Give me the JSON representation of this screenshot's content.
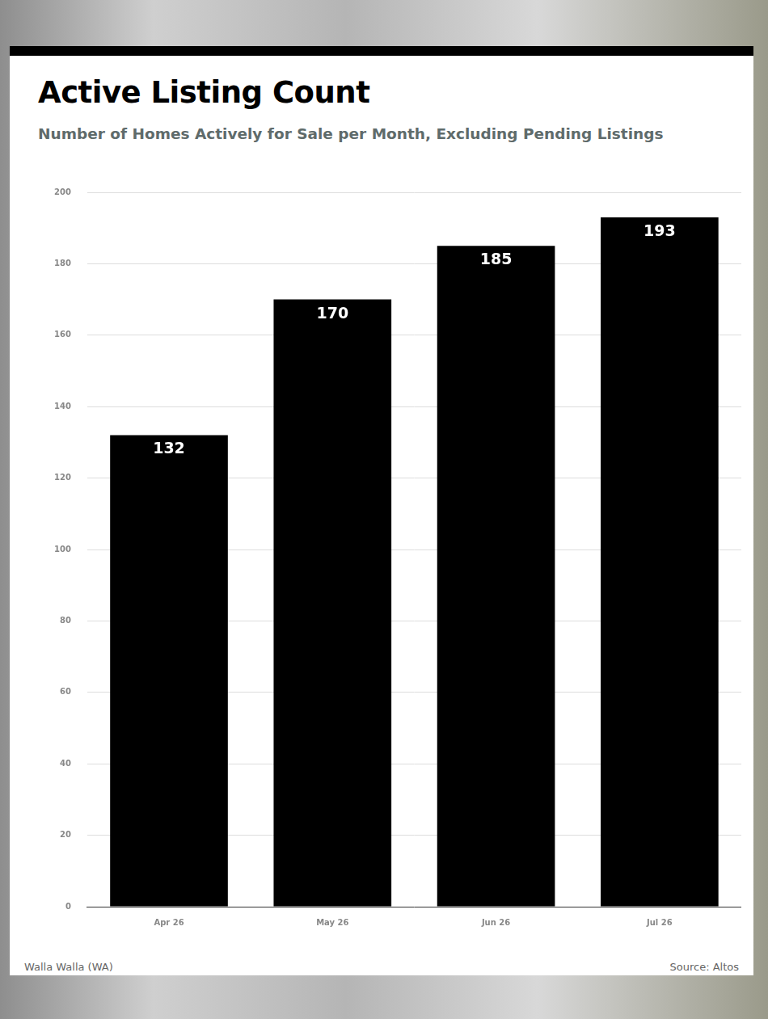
{
  "chart_data": {
    "type": "bar",
    "title": "Active Listing Count",
    "subtitle": "Number of Homes Actively for Sale per Month, Excluding Pending Listings",
    "categories": [
      "Apr 26",
      "May 26",
      "Jun 26",
      "Jul 26"
    ],
    "values": [
      132,
      170,
      185,
      193
    ],
    "color": "#000000",
    "ylim": [
      0,
      200
    ],
    "yticks": [
      0,
      20,
      40,
      60,
      80,
      100,
      120,
      140,
      160,
      180,
      200
    ],
    "grid": true,
    "data_labels": true,
    "footer": {
      "left": "Walla Walla (WA)",
      "right": "Source: Altos"
    }
  }
}
